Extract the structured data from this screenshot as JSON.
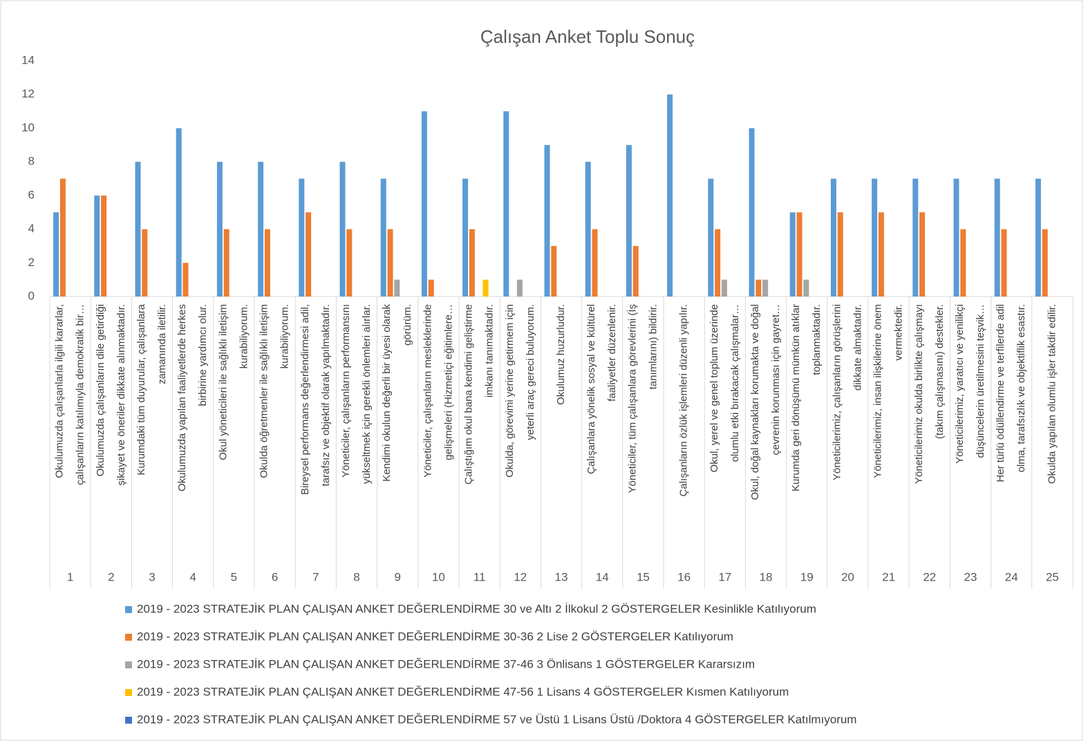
{
  "chart_data": {
    "type": "bar",
    "title": "Çalışan Anket Toplu Sonuç",
    "categories": [
      [
        "Okulumuzda çalışanlarla ilgili kararlar,",
        "çalışanların katılımıyla demokratik bir…"
      ],
      [
        "Okulumuzda çalışanların dile getirdiği",
        "şikayet ve öneriler dikkate alınmaktadır."
      ],
      [
        "Kurumdaki tüm duyurular, çalışanlara",
        "zamanında iletilir."
      ],
      [
        "Okulumuzda yapılan faaliyetlerde herkes",
        "birbirine yardımcı olur."
      ],
      [
        "Okul yöneticileri ile sağlıklı iletişim",
        "kurabiliyorum."
      ],
      [
        "Okulda öğretmenler ile sağlıklı iletişim",
        "kurabiliyorum."
      ],
      [
        "Bireysel performans değerlendirmesi adil,",
        "tarafsız ve objektif olarak yapılmaktadır."
      ],
      [
        "Yöneticiler, çalışanların performansını",
        "yükseltmek için gerekli önlemleri alırlar."
      ],
      [
        "Kendimi okulun değerli bir üyesi olarak",
        "görürüm."
      ],
      [
        "Yöneticiler, çalışanların mesleklerinde",
        "gelişmeleri (Hizmetiçi eğitimlere…"
      ],
      [
        "Çalıştığım okul bana kendimi geliştirme",
        "imkanı tanımaktadır."
      ],
      [
        "Okulda, görevimi yerine getirmem için",
        "yeterli araç gereci buluyorum."
      ],
      [
        "Okulumuz huzurludur."
      ],
      [
        "Çalışanlara yönelik sosyal ve kültürel",
        "faaliyetler düzenlenir."
      ],
      [
        "Yöneticiler, tüm çalışanlara görevlerini (İş",
        "tanımlarını) bildirir."
      ],
      [
        "Çalışanların özlük işlemleri düzenli yapılır."
      ],
      [
        "Okul, yerel ve genel toplum üzerinde",
        "olumlu etki bırakacak çalışmalar…"
      ],
      [
        "Okul, doğal kaynakları korumakta ve doğal",
        "çevrenin korunması için gayret…"
      ],
      [
        "Kurumda geri dönüşümü mümkün atıklar",
        "toplanmaktadır."
      ],
      [
        "Yöneticilerimiz, çalışanların görüşlerini",
        "dikkate almaktadır."
      ],
      [
        "Yöneticilerimiz, insan ilişkilerine önem",
        "vermektedir."
      ],
      [
        "Yöneticilerimiz okulda birlikte çalışmayı",
        "(takım çalışmasını) destekler."
      ],
      [
        "Yöneticilerimiz, yaratıcı ve yenilikçi",
        "düşüncelerin üretilmesini teşvik…"
      ],
      [
        "Her türlü ödüllendirme ve terfilerde adil",
        "olma, tarafsızlık ve objektiflik esastır."
      ],
      [
        "Okulda yapılan olumlu işler takdir edilir."
      ]
    ],
    "category_numbers": [
      1,
      2,
      3,
      4,
      5,
      6,
      7,
      8,
      9,
      10,
      11,
      12,
      13,
      14,
      15,
      16,
      17,
      18,
      19,
      20,
      21,
      22,
      23,
      24,
      25
    ],
    "series": [
      {
        "name": "2019 - 2023 STRATEJİK PLAN ÇALIŞAN ANKET DEĞERLENDİRME 30 ve Altı 2 İlkokul 2 GÖSTERGELER Kesinlikle Katılıyorum",
        "color": "#5b9bd5",
        "values": [
          5,
          6,
          8,
          10,
          8,
          8,
          7,
          8,
          7,
          11,
          7,
          11,
          9,
          8,
          9,
          12,
          7,
          10,
          5,
          7,
          7,
          7,
          7,
          7,
          7
        ]
      },
      {
        "name": "2019 - 2023 STRATEJİK PLAN ÇALIŞAN ANKET DEĞERLENDİRME 30-36 2 Lise 2 GÖSTERGELER Katılıyorum",
        "color": "#ed7d31",
        "values": [
          7,
          6,
          4,
          2,
          4,
          4,
          5,
          4,
          4,
          1,
          4,
          null,
          3,
          4,
          3,
          null,
          4,
          1,
          5,
          5,
          5,
          5,
          4,
          4,
          4
        ]
      },
      {
        "name": "2019 - 2023 STRATEJİK PLAN ÇALIŞAN ANKET DEĞERLENDİRME 37-46 3 Önlisans 1 GÖSTERGELER Kararsızım",
        "color": "#a5a5a5",
        "values": [
          null,
          null,
          null,
          null,
          null,
          null,
          null,
          null,
          1,
          null,
          null,
          1,
          null,
          null,
          null,
          null,
          1,
          1,
          1,
          null,
          null,
          null,
          null,
          null,
          null
        ]
      },
      {
        "name": "2019 - 2023 STRATEJİK PLAN ÇALIŞAN ANKET DEĞERLENDİRME 47-56 1 Lisans 4 GÖSTERGELER Kısmen Katılıyorum",
        "color": "#ffc000",
        "values": [
          null,
          null,
          null,
          null,
          null,
          null,
          null,
          null,
          null,
          null,
          1,
          null,
          null,
          null,
          null,
          null,
          null,
          null,
          null,
          null,
          null,
          null,
          null,
          null,
          null
        ]
      },
      {
        "name": "2019 - 2023 STRATEJİK PLAN ÇALIŞAN ANKET DEĞERLENDİRME 57 ve Üstü 1 Lisans Üstü /Doktora 4 GÖSTERGELER Katılmıyorum",
        "color": "#4472c4",
        "values": [
          null,
          null,
          null,
          null,
          null,
          null,
          null,
          null,
          null,
          null,
          null,
          null,
          null,
          null,
          null,
          null,
          null,
          null,
          null,
          null,
          null,
          null,
          null,
          null,
          null
        ]
      }
    ],
    "ylim": [
      0,
      14
    ],
    "yticks": [
      0,
      2,
      4,
      6,
      8,
      10,
      12,
      14
    ],
    "grid": false
  }
}
